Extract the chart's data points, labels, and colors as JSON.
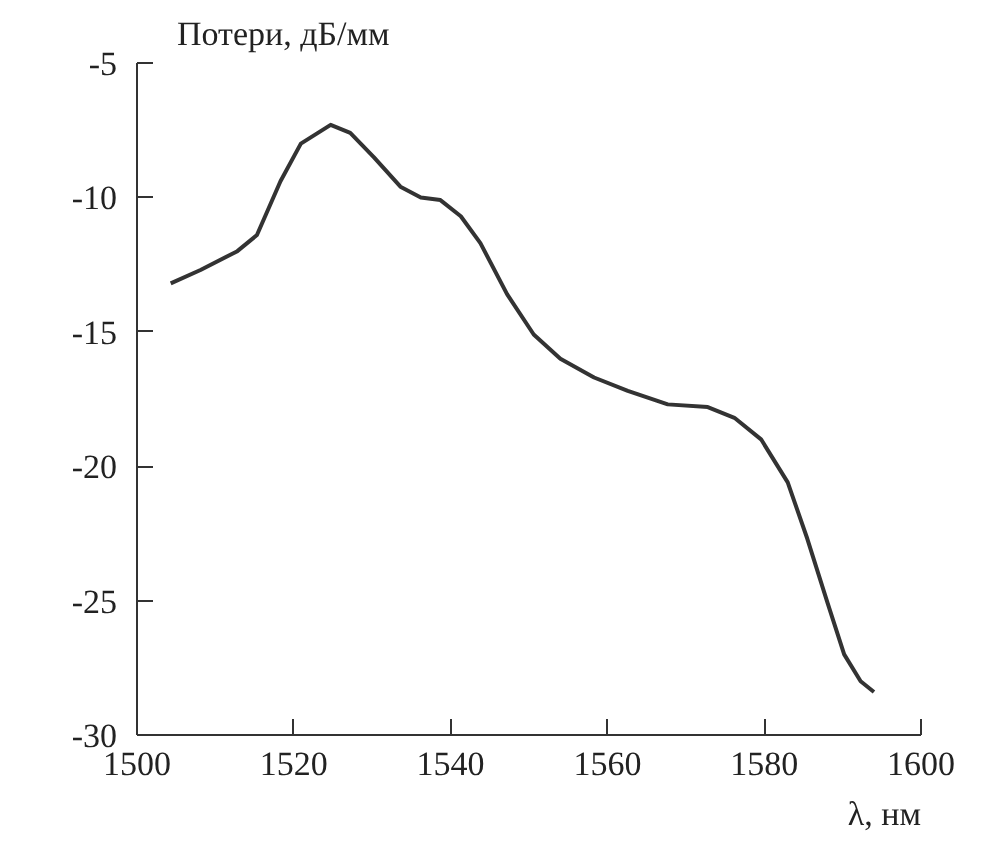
{
  "chart_data": {
    "type": "line",
    "xlabel": "λ, нм",
    "ylabel": "Потери, дБ/мм",
    "x": [
      1504.3,
      1508.1,
      1512.8,
      1515.3,
      1518.3,
      1520.9,
      1524.7,
      1527.2,
      1530.2,
      1533.6,
      1536.2,
      1538.7,
      1541.3,
      1543.8,
      1547.2,
      1550.6,
      1554.0,
      1558.3,
      1562.6,
      1567.7,
      1572.8,
      1576.2,
      1579.6,
      1583.0,
      1585.5,
      1588.1,
      1590.2,
      1592.3,
      1594.0
    ],
    "series": [
      {
        "color": "#333333",
        "values": [
          -13.2,
          -12.7,
          -12.0,
          -11.4,
          -9.4,
          -8.0,
          -7.3,
          -7.6,
          -8.5,
          -9.6,
          -10.0,
          -10.1,
          -10.7,
          -11.7,
          -13.6,
          -15.1,
          -16.0,
          -16.7,
          -17.2,
          -17.7,
          -17.8,
          -18.2,
          -19.0,
          -20.6,
          -22.7,
          -25.1,
          -27.0,
          -28.0,
          -28.4
        ]
      }
    ],
    "xlim": [
      1500,
      1600
    ],
    "ylim": [
      -30,
      -5
    ],
    "xticks": [
      1500,
      1520,
      1540,
      1560,
      1580,
      1600
    ],
    "yticks": [
      -30,
      -25,
      -20,
      -15,
      -10,
      -5
    ],
    "grid": false,
    "marker": "none",
    "line_style": "solid"
  }
}
